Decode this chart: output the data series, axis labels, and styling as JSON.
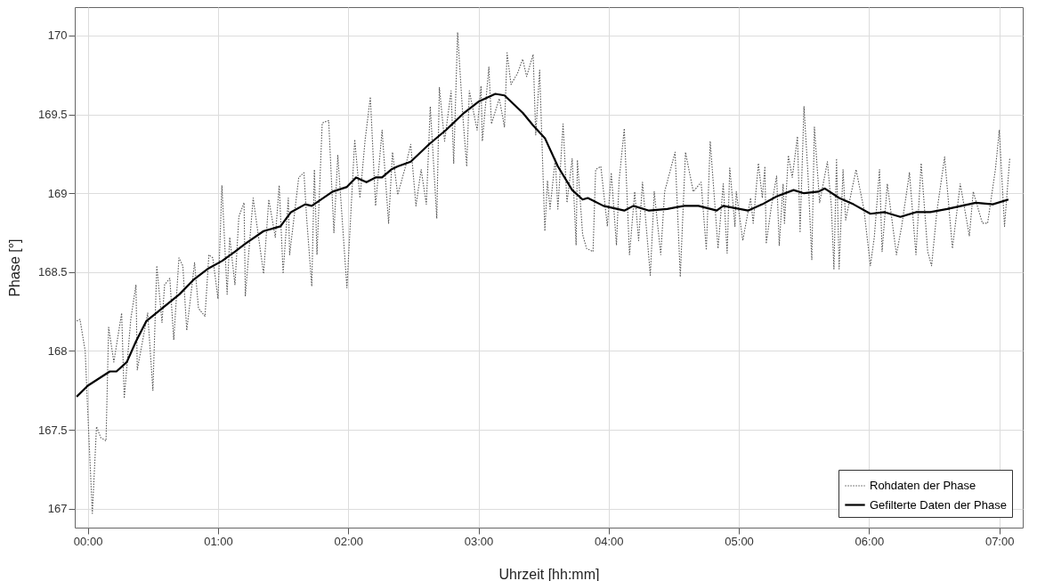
{
  "chart_data": {
    "type": "line",
    "xlabel": "Uhrzeit [hh:mm]",
    "ylabel": "Phase [°]",
    "xlim": [
      -0.1,
      7.18
    ],
    "ylim": [
      166.88,
      170.18
    ],
    "xticks": [
      {
        "value": 0,
        "label": "00:00"
      },
      {
        "value": 1,
        "label": "01:00"
      },
      {
        "value": 2,
        "label": "02:00"
      },
      {
        "value": 3,
        "label": "03:00"
      },
      {
        "value": 4,
        "label": "04:00"
      },
      {
        "value": 5,
        "label": "05:00"
      },
      {
        "value": 6,
        "label": "06:00"
      },
      {
        "value": 7,
        "label": "07:00"
      }
    ],
    "yticks": [
      167,
      167.5,
      168,
      168.5,
      169,
      169.5,
      170
    ],
    "grid": true,
    "legend": "bottom right",
    "marker": "none",
    "series": [
      {
        "name": "Rohdaten der Phase",
        "color": "#555555",
        "line_style": "dotted",
        "x": [
          -0.086,
          -0.06,
          -0.02,
          0,
          0.035,
          0.067,
          0.1,
          0.14,
          0.16,
          0.2,
          0.26,
          0.28,
          0.33,
          0.37,
          0.38,
          0.46,
          0.5,
          0.53,
          0.57,
          0.59,
          0.63,
          0.66,
          0.7,
          0.73,
          0.76,
          0.82,
          0.85,
          0.9,
          0.93,
          0.96,
          1.0,
          1.03,
          1.07,
          1.09,
          1.13,
          1.16,
          1.2,
          1.21,
          1.27,
          1.35,
          1.39,
          1.44,
          1.47,
          1.5,
          1.54,
          1.55,
          1.62,
          1.66,
          1.68,
          1.72,
          1.74,
          1.76,
          1.8,
          1.81,
          1.85,
          1.89,
          1.92,
          1.99,
          2.05,
          2.09,
          2.13,
          2.17,
          2.21,
          2.26,
          2.31,
          2.34,
          2.38,
          2.44,
          2.48,
          2.52,
          2.56,
          2.6,
          2.63,
          2.68,
          2.7,
          2.74,
          2.79,
          2.81,
          2.84,
          2.88,
          2.91,
          2.93,
          2.99,
          3.02,
          3.03,
          3.08,
          3.1,
          3.16,
          3.2,
          3.22,
          3.25,
          3.3,
          3.34,
          3.37,
          3.42,
          3.44,
          3.47,
          3.51,
          3.53,
          3.55,
          3.59,
          3.61,
          3.65,
          3.68,
          3.72,
          3.75,
          3.76,
          3.8,
          3.83,
          3.88,
          3.9,
          3.94,
          3.99,
          4.02,
          4.06,
          4.08,
          4.12,
          4.16,
          4.2,
          4.23,
          4.26,
          4.32,
          4.35,
          4.4,
          4.43,
          4.51,
          4.55,
          4.59,
          4.65,
          4.71,
          4.75,
          4.78,
          4.84,
          4.88,
          4.91,
          4.93,
          4.97,
          4.98,
          5.03,
          5.09,
          5.11,
          5.15,
          5.18,
          5.2,
          5.21,
          5.25,
          5.29,
          5.31,
          5.34,
          5.35,
          5.38,
          5.41,
          5.45,
          5.47,
          5.5,
          5.53,
          5.56,
          5.58,
          5.62,
          5.68,
          5.71,
          5.73,
          5.75,
          5.77,
          5.8,
          5.82,
          5.9,
          5.96,
          6.01,
          6.04,
          6.08,
          6.1,
          6.14,
          6.21,
          6.25,
          6.31,
          6.36,
          6.4,
          6.45,
          6.48,
          6.52,
          6.58,
          6.64,
          6.7,
          6.77,
          6.8,
          6.87,
          6.91,
          6.97,
          7.0,
          7.04,
          7.08
        ],
        "values": [
          168.19,
          168.2,
          168.0,
          167.61,
          166.97,
          167.52,
          167.45,
          167.43,
          168.15,
          167.93,
          168.24,
          167.7,
          168.2,
          168.42,
          167.88,
          168.24,
          167.75,
          168.54,
          168.18,
          168.42,
          168.46,
          168.07,
          168.59,
          168.54,
          168.13,
          168.56,
          168.27,
          168.22,
          168.61,
          168.59,
          168.33,
          169.05,
          168.36,
          168.72,
          168.42,
          168.85,
          168.94,
          168.35,
          168.97,
          168.49,
          168.96,
          168.72,
          169.05,
          168.49,
          168.97,
          168.61,
          169.1,
          169.13,
          168.85,
          168.41,
          169.15,
          168.61,
          169.44,
          169.45,
          169.46,
          168.75,
          169.24,
          168.4,
          169.34,
          168.97,
          169.34,
          169.61,
          168.92,
          169.4,
          168.81,
          169.26,
          168.99,
          169.17,
          169.31,
          168.92,
          169.15,
          168.93,
          169.55,
          168.84,
          169.67,
          169.33,
          169.65,
          169.19,
          170.02,
          169.49,
          169.17,
          169.65,
          169.4,
          169.68,
          169.33,
          169.8,
          169.44,
          169.6,
          169.42,
          169.89,
          169.69,
          169.76,
          169.85,
          169.74,
          169.88,
          169.37,
          169.78,
          168.76,
          169.08,
          168.9,
          169.22,
          168.9,
          169.44,
          168.94,
          169.22,
          168.67,
          169.21,
          168.74,
          168.65,
          168.63,
          169.15,
          169.17,
          168.79,
          169.13,
          168.67,
          169.08,
          169.41,
          168.61,
          169.01,
          168.7,
          169.07,
          168.48,
          169.01,
          168.61,
          169.01,
          169.26,
          168.47,
          169.26,
          169.01,
          169.07,
          168.64,
          169.33,
          168.65,
          169.06,
          168.62,
          169.16,
          168.79,
          169.01,
          168.7,
          168.97,
          168.81,
          169.19,
          168.97,
          169.17,
          168.68,
          168.92,
          169.11,
          168.67,
          169.06,
          168.81,
          169.24,
          169.1,
          169.36,
          168.75,
          169.55,
          169.13,
          168.58,
          169.42,
          168.94,
          169.2,
          168.92,
          168.52,
          169.22,
          168.52,
          169.15,
          168.83,
          169.15,
          168.9,
          168.54,
          168.72,
          169.15,
          168.63,
          169.06,
          168.61,
          168.79,
          169.13,
          168.61,
          169.19,
          168.63,
          168.54,
          168.88,
          169.23,
          168.65,
          169.06,
          168.73,
          169.01,
          168.81,
          168.81,
          169.15,
          169.4,
          168.79,
          169.22
        ]
      },
      {
        "name": "Gefilterte Daten der Phase",
        "color": "#000000",
        "line_style": "solid",
        "x": [
          -0.086,
          0,
          0.169,
          0.22,
          0.3,
          0.37,
          0.45,
          0.57,
          0.705,
          0.81,
          0.92,
          1.03,
          1.13,
          1.21,
          1.35,
          1.48,
          1.56,
          1.67,
          1.72,
          1.88,
          1.99,
          2.06,
          2.14,
          2.21,
          2.26,
          2.33,
          2.38,
          2.48,
          2.62,
          2.75,
          2.89,
          3.0,
          3.13,
          3.2,
          3.34,
          3.42,
          3.51,
          3.61,
          3.72,
          3.8,
          3.84,
          3.96,
          4.12,
          4.19,
          4.31,
          4.45,
          4.58,
          4.69,
          4.83,
          4.88,
          5.07,
          5.18,
          5.29,
          5.42,
          5.5,
          5.61,
          5.66,
          5.77,
          5.88,
          6.01,
          6.12,
          6.24,
          6.36,
          6.47,
          6.6,
          6.71,
          6.82,
          6.95,
          7.07
        ],
        "values": [
          167.71,
          167.78,
          167.87,
          167.87,
          167.93,
          168.06,
          168.19,
          168.27,
          168.36,
          168.45,
          168.52,
          168.57,
          168.63,
          168.68,
          168.76,
          168.79,
          168.88,
          168.93,
          168.92,
          169.01,
          169.04,
          169.1,
          169.07,
          169.1,
          169.1,
          169.15,
          169.17,
          169.2,
          169.31,
          169.4,
          169.51,
          169.58,
          169.63,
          169.62,
          169.51,
          169.43,
          169.35,
          169.17,
          169.02,
          168.96,
          168.97,
          168.92,
          168.89,
          168.92,
          168.89,
          168.9,
          168.92,
          168.92,
          168.89,
          168.92,
          168.89,
          168.93,
          168.98,
          169.02,
          169.0,
          169.01,
          169.03,
          168.97,
          168.93,
          168.87,
          168.88,
          168.85,
          168.88,
          168.88,
          168.9,
          168.92,
          168.94,
          168.93,
          168.96
        ]
      }
    ]
  }
}
